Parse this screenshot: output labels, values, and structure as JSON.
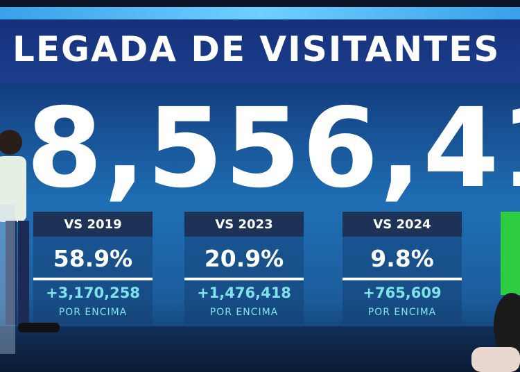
{
  "header": {
    "title": "LEGADA DE VISITANTES"
  },
  "total": "8,556,41",
  "cards": [
    {
      "label": "VS 2019",
      "percent": "58.9%",
      "increase": "+3,170,258",
      "note": "POR ENCIMA"
    },
    {
      "label": "VS 2023",
      "percent": "20.9%",
      "increase": "+1,476,418",
      "note": "POR ENCIMA"
    },
    {
      "label": "VS 2024",
      "percent": "9.8%",
      "increase": "+765,609",
      "note": "POR ENCIMA"
    }
  ]
}
